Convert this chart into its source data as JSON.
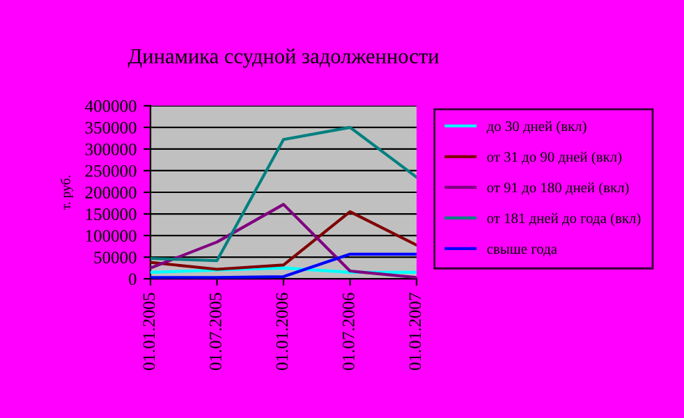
{
  "chart_data": {
    "type": "line",
    "title": "Динамика ссудной задолженности",
    "ylabel": "т. руб.",
    "categories": [
      "01.01.2005",
      "01.07.2005",
      "01.01.2006",
      "01.07.2006",
      "01.01.2007"
    ],
    "series": [
      {
        "name": "до 30 дней (вкл)",
        "color": "#00ffff",
        "values": [
          15000,
          20000,
          25000,
          15000,
          15000
        ]
      },
      {
        "name": "от 31 до 90 дней (вкл)",
        "color": "#800000",
        "values": [
          38000,
          22000,
          32000,
          155000,
          78000
        ]
      },
      {
        "name": "от 91 до 180 дней (вкл)",
        "color": "#800080",
        "values": [
          25000,
          85000,
          172000,
          18000,
          3000
        ]
      },
      {
        "name": "от 181 дней до года (вкл)",
        "color": "#008080",
        "values": [
          47000,
          42000,
          322000,
          350000,
          235000
        ]
      },
      {
        "name": "свыше года",
        "color": "#0000ff",
        "values": [
          3000,
          3000,
          5000,
          57000,
          57000
        ]
      }
    ],
    "ylim": [
      0,
      400000
    ],
    "yticks": [
      0,
      50000,
      100000,
      150000,
      200000,
      250000,
      300000,
      350000,
      400000
    ],
    "grid": "y",
    "legend": "right",
    "marker": "none",
    "line_style": "solid"
  }
}
